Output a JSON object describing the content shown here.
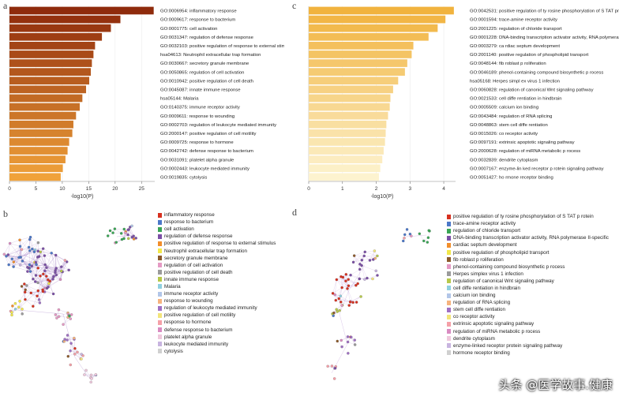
{
  "panels": {
    "a": "a",
    "b": "b",
    "c": "c",
    "d": "d"
  },
  "chart_data": [
    {
      "type": "bar",
      "orientation": "horizontal",
      "panel": "a",
      "xlabel": "-log10(P)",
      "xlim": [
        0,
        27.5
      ],
      "xticks": [
        "0",
        "5",
        "10",
        "15",
        "20",
        "25"
      ],
      "color_scale": [
        "#8f2b0c",
        "#f0a23a"
      ],
      "categories": [
        "GO:0006954: inflammatory response",
        "GO:0009617: response to bacterium",
        "GO:0001775: cell activation",
        "GO:0031347: regulation of defense response",
        "GO:0032103: positive regulation of response to external stimulus",
        "hsa04613: Neutrophil extracellular trap formation",
        "GO:0030667: secretory granule membrane",
        "GO:0050865: regulation of cell activation",
        "GO:0010942: positive regulation of cell death",
        "GO:0045087: innate immune response",
        "hsa05144: Malaria",
        "GO:0140375: immune receptor activity",
        "GO:0009611: response to wounding",
        "GO:0002703: regulation of leukocyte mediated immunity",
        "GO:2000147: positive regulation of cell motility",
        "GO:0009725: response to hormone",
        "GO:0042742: defense response to bacterium",
        "GO:0031091: platelet alpha granule",
        "GO:0002443: leukocyte mediated immunity",
        "GO:0019835: cytolysis"
      ],
      "values": [
        27.3,
        21.0,
        19.2,
        17.5,
        16.2,
        15.9,
        15.6,
        15.4,
        15.1,
        14.5,
        13.8,
        13.3,
        12.6,
        12.1,
        11.9,
        11.3,
        11.0,
        10.6,
        10.1,
        9.7
      ]
    },
    {
      "type": "bar",
      "orientation": "horizontal",
      "panel": "c",
      "xlabel": "-log10(P)",
      "xlim": [
        0,
        4.35
      ],
      "xticks": [
        "0",
        "1",
        "2",
        "3",
        "4"
      ],
      "color_scale": [
        "#f1b33e",
        "#fdf3cf"
      ],
      "categories": [
        "GO:0042531: positive regulation of ty rosine phosphorylation of S TAT protein",
        "GO:0001594: trace-amine receptor activity",
        "GO:2001225: regulation of chloride transport",
        "GO:0001228: DNA-binding transcription activator activity, RNA polymerase II-specific",
        "GO:0003279: ca rdiac septum development",
        "GO:2001140: positive regulation of phospholipid transport",
        "GO:0048144: fib roblast p roliferation",
        "GO:0046189: phenol-containing compound biosynthetic p rocess",
        "hsa05168: Herpes simpl ex virus 1 infection",
        "GO:0060828: regulation of canonical Wnt signaling pathway",
        "GO:0021533: cell diffe rentiation in hindbrain",
        "GO:0005509: calcium ion binding",
        "GO:0043484: regulation of RNA splicing",
        "GO:0048863: stem cell diffe rentiation",
        "GO:0015026: co receptor activity",
        "GO:0097191: extrinsic apoptotic signaling pathway",
        "GO:2000628: regulation of miRNA metabolic p rocess",
        "GO:0032839: dendrite cytoplasm",
        "GO:0007167: enzyme-lin ked receptor p rotein signaling pathway",
        "GO:0051427: ho rmone receptor binding"
      ],
      "values": [
        4.3,
        4.05,
        3.82,
        3.55,
        3.1,
        3.05,
        2.92,
        2.85,
        2.65,
        2.5,
        2.42,
        2.4,
        2.35,
        2.3,
        2.28,
        2.26,
        2.22,
        2.18,
        2.12,
        2.08
      ]
    }
  ],
  "legend_b": [
    {
      "label": "inflammatory response",
      "color": "#d7301f"
    },
    {
      "label": "response to bacterium",
      "color": "#4c78c9"
    },
    {
      "label": "cell activation",
      "color": "#3aa655"
    },
    {
      "label": "regulation of defense response",
      "color": "#7b4fa6"
    },
    {
      "label": "positive regulation of response to external stimulus",
      "color": "#f28e2b"
    },
    {
      "label": "Neutrophil extracellular trap formation",
      "color": "#f2e84a"
    },
    {
      "label": "secretory granule membrane",
      "color": "#8c5a2b"
    },
    {
      "label": "regulation of cell activation",
      "color": "#e59ac4"
    },
    {
      "label": "positive regulation of cell death",
      "color": "#9b9b9b"
    },
    {
      "label": "innate immune response",
      "color": "#b7c94a"
    },
    {
      "label": "Malaria",
      "color": "#8fd0e0"
    },
    {
      "label": "immune receptor activity",
      "color": "#b2c6e8"
    },
    {
      "label": "response to wounding",
      "color": "#f6b37e"
    },
    {
      "label": "regulation of leukocyte mediated immunity",
      "color": "#a070c4"
    },
    {
      "label": "positive regulation of cell motility",
      "color": "#f3e57a"
    },
    {
      "label": "response to hormone",
      "color": "#f5a0a8"
    },
    {
      "label": "defense response to bacterium",
      "color": "#d98bc2"
    },
    {
      "label": "platelet alpha granule",
      "color": "#efc8dc"
    },
    {
      "label": "leukocyte mediated immunity",
      "color": "#c8b4e0"
    },
    {
      "label": "cytolysis",
      "color": "#d0d0d0"
    }
  ],
  "legend_d": [
    {
      "label": "positive regulation of ty rosine phosphorylation of S TAT p rotein",
      "color": "#d7301f"
    },
    {
      "label": "trace-amine receptor activity",
      "color": "#4c78c9"
    },
    {
      "label": "regulation of chloride transport",
      "color": "#3aa655"
    },
    {
      "label": "DNA-binding transcription activator activity, RNA polymerase II-specific",
      "color": "#7b4fa6"
    },
    {
      "label": "cardiac septum development",
      "color": "#f28e2b"
    },
    {
      "label": "positive regulation of phospholipid transport",
      "color": "#f2e84a"
    },
    {
      "label": "fib roblast p roliferation",
      "color": "#8c5a2b"
    },
    {
      "label": "phenol-containing compound biosynthetic p rocess",
      "color": "#e59ac4"
    },
    {
      "label": "Herpes simplex virus 1 infection",
      "color": "#9b9b9b"
    },
    {
      "label": "regulation of canonical Wnt signaling pathway",
      "color": "#b7c94a"
    },
    {
      "label": "cell diffe rentiation in hindbrain",
      "color": "#8fd0e0"
    },
    {
      "label": "calcium ion binding",
      "color": "#b2c6e8"
    },
    {
      "label": "regulation of RNA splicing",
      "color": "#f6b37e"
    },
    {
      "label": "stem cell diffe rentiation",
      "color": "#a070c4"
    },
    {
      "label": "co receptor activity",
      "color": "#f3e57a"
    },
    {
      "label": "extrinsic apoptotic signaling pathway",
      "color": "#f5a0a8"
    },
    {
      "label": "regulation of miRNA metabolic p rocess",
      "color": "#d98bc2"
    },
    {
      "label": "dendrite cytoplasm",
      "color": "#efc8dc"
    },
    {
      "label": "enzyme-linked receptor protein signaling pathway",
      "color": "#c8b4e0"
    },
    {
      "label": "hormone receptor binding",
      "color": "#d0d0d0"
    }
  ],
  "watermark": "头条 @医学故事.健康"
}
